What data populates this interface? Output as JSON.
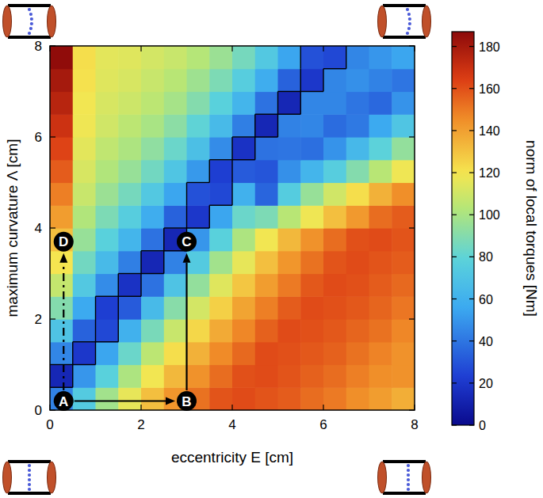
{
  "chart_data": {
    "type": "heatmap",
    "x_label": "eccentricity E [cm]",
    "y_label": "maximum curvature Λ [cm]",
    "x": [
      0.25,
      0.75,
      1.25,
      1.75,
      2.25,
      2.75,
      3.25,
      3.75,
      4.25,
      4.75,
      5.25,
      5.75,
      6.25,
      6.75,
      7.25,
      7.75
    ],
    "y": [
      0.25,
      0.75,
      1.25,
      1.75,
      2.25,
      2.75,
      3.25,
      3.75,
      4.25,
      4.75,
      5.25,
      5.75,
      6.25,
      6.75,
      7.25,
      7.75
    ],
    "values": [
      [
        44,
        74,
        98,
        116,
        131,
        143,
        152,
        159,
        161,
        159,
        157,
        153,
        150,
        145,
        141,
        136
      ],
      [
        13,
        50,
        78,
        101,
        119,
        133,
        144,
        153,
        160,
        161,
        159,
        156,
        153,
        149,
        145,
        144
      ],
      [
        45,
        20,
        55,
        83,
        105,
        122,
        135,
        146,
        154,
        161,
        160,
        158,
        156,
        152,
        148,
        144
      ],
      [
        70,
        34,
        26,
        60,
        87,
        108,
        124,
        137,
        147,
        156,
        161,
        160,
        158,
        155,
        152,
        147
      ],
      [
        90,
        56,
        23,
        32,
        65,
        91,
        111,
        126,
        139,
        149,
        157,
        161,
        160,
        158,
        155,
        151
      ],
      [
        107,
        73,
        47,
        18,
        39,
        70,
        94,
        114,
        129,
        141,
        150,
        158,
        161,
        160,
        157,
        154
      ],
      [
        120,
        85,
        65,
        43,
        13,
        44,
        74,
        98,
        116,
        131,
        143,
        152,
        159,
        161,
        159,
        157
      ],
      [
        131,
        95,
        78,
        62,
        39,
        13,
        50,
        78,
        101,
        119,
        133,
        144,
        153,
        160,
        161,
        159
      ],
      [
        141,
        102,
        88,
        76,
        58,
        34,
        20,
        55,
        83,
        88,
        104,
        118,
        131,
        142,
        153,
        157
      ],
      [
        149,
        108,
        96,
        86,
        73,
        55,
        29,
        26,
        60,
        35,
        75,
        95,
        110,
        122,
        135,
        145
      ],
      [
        157,
        112,
        102,
        95,
        85,
        71,
        51,
        23,
        32,
        30,
        48,
        62,
        76,
        90,
        104,
        118
      ],
      [
        163,
        115,
        106,
        101,
        93,
        83,
        68,
        47,
        18,
        39,
        40,
        38,
        49,
        64,
        79,
        94
      ],
      [
        169,
        118,
        110,
        105,
        100,
        92,
        80,
        65,
        43,
        13,
        44,
        45,
        37,
        41,
        56,
        71
      ],
      [
        175,
        119,
        112,
        109,
        105,
        99,
        90,
        78,
        62,
        39,
        13,
        45,
        45,
        40,
        36,
        49
      ],
      [
        180,
        121,
        114,
        112,
        108,
        104,
        97,
        88,
        76,
        58,
        34,
        20,
        45,
        48,
        44,
        40
      ],
      [
        186,
        122,
        115,
        114,
        111,
        108,
        103,
        96,
        86,
        73,
        55,
        29,
        26,
        45,
        50,
        55
      ]
    ],
    "xlim": [
      0,
      8
    ],
    "ylim": [
      0,
      8
    ],
    "xticks": [
      0,
      2,
      4,
      6,
      8
    ],
    "yticks": [
      0,
      2,
      4,
      6,
      8
    ],
    "colorbar": {
      "label": "norm of local torques [Nm]",
      "lim": [
        0,
        187
      ],
      "ticks": [
        0,
        20,
        40,
        60,
        80,
        100,
        120,
        140,
        160,
        180
      ]
    },
    "contour_level": 30,
    "points": [
      {
        "label": "A",
        "x": 0.3,
        "y": 0.2
      },
      {
        "label": "B",
        "x": 3.0,
        "y": 0.2
      },
      {
        "label": "C",
        "x": 3.0,
        "y": 3.7
      },
      {
        "label": "D",
        "x": 0.3,
        "y": 3.7
      }
    ],
    "arrows": [
      {
        "from": 0,
        "to": 1,
        "line_style": "solid"
      },
      {
        "from": 1,
        "to": 2,
        "line_style": "solid"
      },
      {
        "from": 0,
        "to": 3,
        "line_style": "dashed"
      }
    ]
  }
}
